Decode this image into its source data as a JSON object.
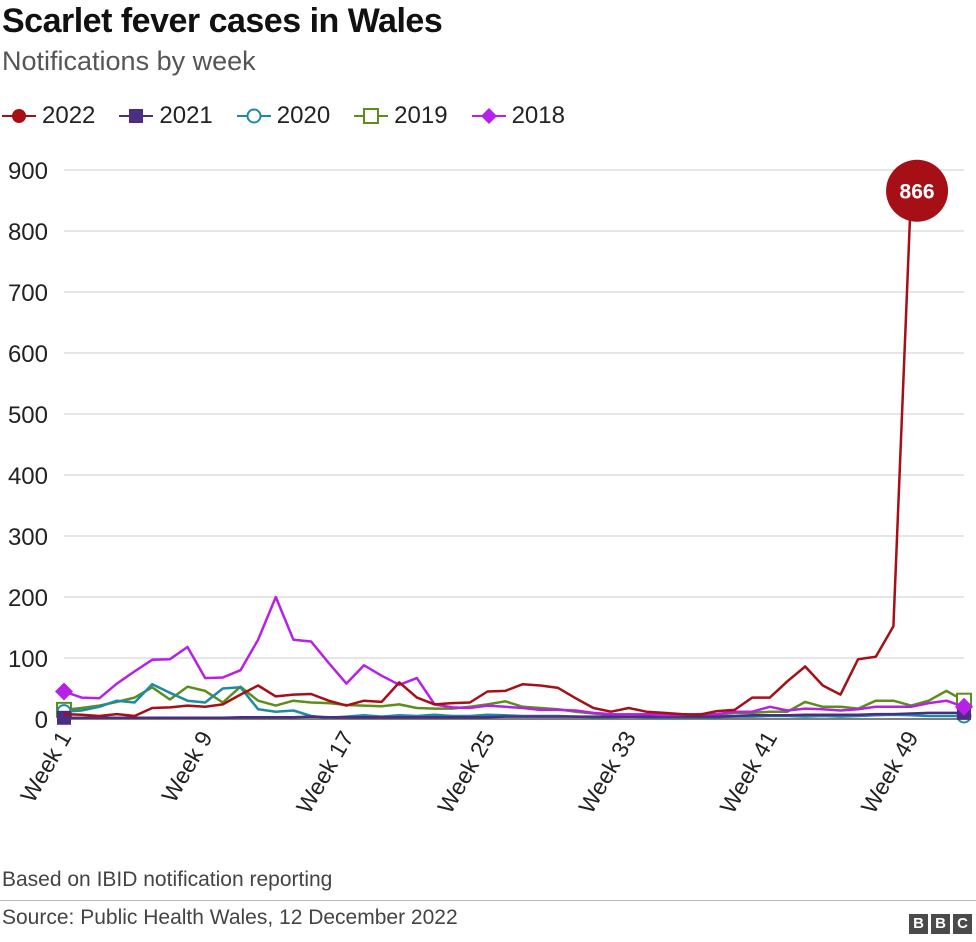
{
  "header": {
    "title": "Scarlet fever cases in Wales",
    "subtitle": "Notifications by week"
  },
  "footer": {
    "note": "Based on IBID notification reporting",
    "source": "Source: Public Health Wales, 12 December 2022",
    "logo_letters": [
      "B",
      "B",
      "C"
    ]
  },
  "chart_data": {
    "type": "line",
    "title": "Scarlet fever cases in Wales",
    "subtitle": "Notifications by week",
    "xlabel": "",
    "ylabel": "",
    "x": [
      1,
      2,
      3,
      4,
      5,
      6,
      7,
      8,
      9,
      10,
      11,
      12,
      13,
      14,
      15,
      16,
      17,
      18,
      19,
      20,
      21,
      22,
      23,
      24,
      25,
      26,
      27,
      28,
      29,
      30,
      31,
      32,
      33,
      34,
      35,
      36,
      37,
      38,
      39,
      40,
      41,
      42,
      43,
      44,
      45,
      46,
      47,
      48,
      49,
      50,
      51,
      52
    ],
    "x_tick_values": [
      1,
      9,
      17,
      25,
      33,
      41,
      49
    ],
    "x_tick_labels": [
      "Week 1",
      "Week 9",
      "Week 17",
      "Week 25",
      "Week 33",
      "Week 41",
      "Week 49"
    ],
    "ylim": [
      0,
      900
    ],
    "y_ticks": [
      0,
      100,
      200,
      300,
      400,
      500,
      600,
      700,
      800,
      900
    ],
    "grid": true,
    "legend_position": "top-left",
    "series": [
      {
        "name": "2022",
        "color": "#a50f15",
        "marker": "circle",
        "values": [
          8,
          7,
          5,
          8,
          5,
          18,
          19,
          22,
          20,
          24,
          40,
          55,
          37,
          40,
          41,
          30,
          22,
          30,
          28,
          60,
          35,
          24,
          26,
          27,
          45,
          46,
          57,
          55,
          51,
          34,
          18,
          12,
          18,
          12,
          10,
          8,
          7,
          13,
          15,
          35,
          35,
          62,
          86,
          55,
          40,
          98,
          102,
          152,
          866,
          null,
          null,
          null
        ]
      },
      {
        "name": "2021",
        "color": "#4b2e83",
        "marker": "square",
        "values": [
          2,
          2,
          2,
          2,
          2,
          2,
          2,
          2,
          2,
          2,
          3,
          3,
          3,
          3,
          4,
          3,
          3,
          3,
          3,
          3,
          3,
          3,
          3,
          3,
          3,
          4,
          4,
          4,
          4,
          4,
          4,
          4,
          4,
          4,
          4,
          4,
          4,
          4,
          5,
          6,
          6,
          6,
          7,
          7,
          7,
          7,
          8,
          8,
          9,
          10,
          10,
          10
        ]
      },
      {
        "name": "2020",
        "color": "#1d8aa6",
        "marker": "circle-open",
        "values": [
          12,
          14,
          20,
          30,
          27,
          57,
          43,
          30,
          27,
          50,
          52,
          16,
          12,
          14,
          5,
          2,
          4,
          6,
          4,
          6,
          5,
          7,
          5,
          5,
          7,
          6,
          5,
          5,
          5,
          4,
          3,
          3,
          4,
          3,
          3,
          3,
          3,
          3,
          4,
          4,
          5,
          5,
          4,
          5,
          4,
          5,
          6,
          7,
          6,
          5,
          5,
          5
        ]
      },
      {
        "name": "2019",
        "color": "#5b8f1a",
        "marker": "square-open",
        "values": [
          15,
          18,
          22,
          28,
          35,
          52,
          32,
          53,
          46,
          27,
          53,
          30,
          22,
          30,
          27,
          26,
          23,
          22,
          21,
          24,
          18,
          17,
          17,
          20,
          24,
          29,
          20,
          18,
          16,
          12,
          9,
          7,
          8,
          7,
          8,
          6,
          5,
          7,
          10,
          10,
          12,
          12,
          28,
          20,
          20,
          17,
          30,
          30,
          22,
          30,
          46,
          30
        ]
      },
      {
        "name": "2018",
        "color": "#b720e6",
        "marker": "diamond",
        "values": [
          45,
          35,
          34,
          58,
          78,
          97,
          98,
          118,
          67,
          68,
          80,
          130,
          200,
          130,
          127,
          92,
          58,
          88,
          71,
          56,
          67,
          24,
          19,
          18,
          22,
          20,
          18,
          15,
          15,
          14,
          10,
          8,
          7,
          8,
          6,
          7,
          8,
          8,
          12,
          12,
          20,
          14,
          17,
          16,
          14,
          16,
          20,
          20,
          20,
          26,
          30,
          20
        ]
      }
    ],
    "annotations": [
      {
        "series": "2022",
        "x": 49,
        "y": 866,
        "text": "866"
      }
    ]
  }
}
